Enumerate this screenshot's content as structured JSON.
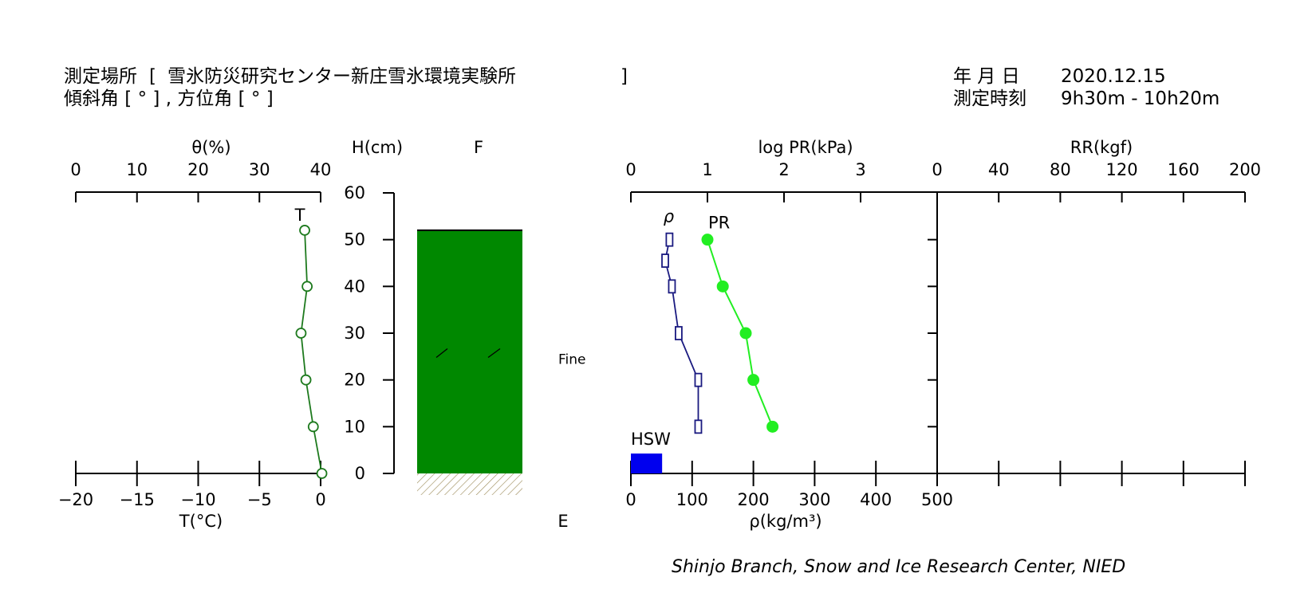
{
  "header": {
    "location_label": "測定場所",
    "location_value": "雪氷防災研究センター新庄雪氷環境実験所",
    "slope_line": "傾斜角 [ ° ] , 方位角 [ ° ]",
    "date_label": "年 月 日",
    "date_value": "2020.12.15",
    "time_label": "測定時刻",
    "time_value": "9h30m - 10h20m"
  },
  "credit": "Shinjo Branch, Snow and Ice Research Center, NIED",
  "colors": {
    "temperature": "#1e7a1e",
    "snow_layer": "#008800",
    "density": "#1a1a80",
    "pr": "#22ee22",
    "hsw": "#0000ee",
    "ground_hatch": "#a09060"
  },
  "chart_data": [
    {
      "id": "temperature",
      "type": "line",
      "title": "",
      "xlabel": "T(°C)",
      "ylabel": "H(cm)",
      "x_ticks": [
        "−20",
        "−15",
        "−10",
        "−5",
        "0"
      ],
      "xlim": [
        -20,
        0
      ],
      "series": [
        {
          "name": "T",
          "x": [
            0.1,
            -0.6,
            -1.2,
            -1.6,
            -1.1,
            -1.3
          ],
          "y": [
            0,
            10,
            20,
            30,
            40,
            52
          ]
        }
      ],
      "top_axis": {
        "label": "θ(%)",
        "ticks": [
          "0",
          "10",
          "20",
          "30",
          "40"
        ],
        "range": [
          0,
          40
        ],
        "values": []
      }
    },
    {
      "id": "height_axis",
      "type": "table",
      "ylabel": "H(cm)",
      "y_ticks": [
        "60",
        "50",
        "40",
        "30",
        "20",
        "10",
        "0"
      ],
      "ylim": [
        0,
        60
      ]
    },
    {
      "id": "snow_layers",
      "type": "bar",
      "title": "F",
      "xlabel": "E",
      "layers": [
        {
          "from": 0,
          "to": 52,
          "grain": "Fine",
          "color": "#008800"
        }
      ],
      "ground": "hatched"
    },
    {
      "id": "density",
      "type": "line",
      "xlabel": "ρ(kg/m³)",
      "x_ticks": [
        "0",
        "100",
        "200",
        "300",
        "400",
        "500"
      ],
      "xlim": [
        0,
        500
      ],
      "series": [
        {
          "name": "ρ",
          "x": [
            110,
            110,
            78,
            67,
            56,
            63
          ],
          "y": [
            10,
            20,
            30,
            40,
            45.5,
            50
          ]
        }
      ],
      "hsw": {
        "label": "HSW",
        "value": 51
      }
    },
    {
      "id": "pr",
      "type": "line",
      "xlabel": "",
      "top_axis": {
        "label": "log PR(kPa)",
        "ticks": [
          "0",
          "1",
          "2",
          "3"
        ],
        "range": [
          0,
          4
        ]
      },
      "series": [
        {
          "name": "PR",
          "x": [
            1.85,
            1.6,
            1.5,
            1.2,
            1.0
          ],
          "y": [
            10,
            20,
            30,
            40,
            50
          ]
        }
      ]
    },
    {
      "id": "rr",
      "type": "line",
      "top_axis": {
        "label": "RR(kgf)",
        "ticks": [
          "0",
          "40",
          "80",
          "120",
          "160",
          "200"
        ],
        "range": [
          0,
          200
        ]
      },
      "series": []
    }
  ]
}
